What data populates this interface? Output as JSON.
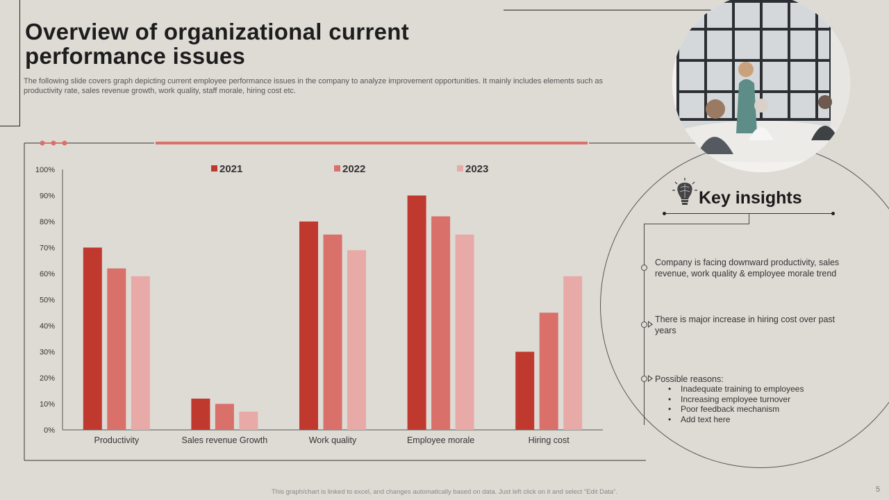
{
  "slide": {
    "title": "Overview of organizational current performance issues",
    "subtitle": "The following slide covers graph depicting current employee performance issues in the company to analyze improvement opportunities. It mainly includes elements such as productivity rate, sales revenue growth, work quality, staff morale, hiring cost etc.",
    "footer": "This graph/chart is linked to excel, and changes automatically based on data. Just left click on it and select “Edit Data”.",
    "page_number": "5",
    "photo_icon": "office-meeting-photo",
    "brain_icon": "brain-lightbulb-icon"
  },
  "chart_data": {
    "type": "bar",
    "title": "",
    "xlabel": "",
    "ylabel": "",
    "ylim": [
      0,
      100
    ],
    "yticks": [
      "0%",
      "10%",
      "20%",
      "30%",
      "40%",
      "50%",
      "60%",
      "70%",
      "80%",
      "90%",
      "100%"
    ],
    "categories": [
      "Productivity",
      "Sales revenue Growth",
      "Work quality",
      "Employee morale",
      "Hiring cost"
    ],
    "series": [
      {
        "name": "2021",
        "color": "#c0392f",
        "values": [
          70,
          12,
          80,
          90,
          30
        ]
      },
      {
        "name": "2022",
        "color": "#d9706a",
        "values": [
          62,
          10,
          75,
          82,
          45
        ]
      },
      {
        "name": "2023",
        "color": "#e8aaa6",
        "values": [
          59,
          7,
          69,
          75,
          59
        ]
      }
    ],
    "legend_position": "top-center"
  },
  "insights": {
    "title": "Key insights",
    "item1": "Company is facing downward productivity, sales revenue, work quality & employee morale trend",
    "item2": "There is major increase in hiring cost over past years",
    "item3": "Possible reasons:",
    "reasons": [
      "Inadequate training to employees",
      "Increasing employee turnover",
      "Poor feedback mechanism",
      "Add text here"
    ]
  },
  "colors": {
    "accent": "#d9706a",
    "background": "#dedbd5"
  }
}
